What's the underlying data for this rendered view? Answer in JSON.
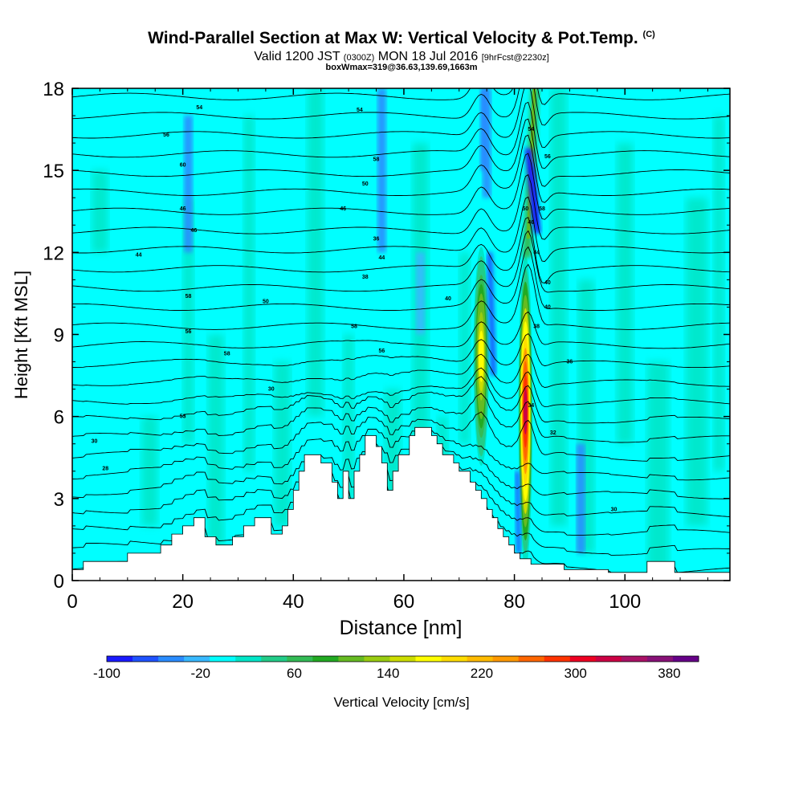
{
  "header": {
    "title": "Wind-Parallel Section at Max W: Vertical Velocity & Pot.Temp.",
    "copyright": "(C)",
    "valid_prefix": "Valid 1200 JST",
    "valid_utc": "(0300Z)",
    "valid_date": "MON 18 Jul 2016",
    "forecast": "[9hrFcst@2230z]",
    "boxwmax": "boxWmax=319@36.63,139.69,1663m"
  },
  "chart_data": {
    "type": "heatmap",
    "xlabel": "Distance [nm]",
    "ylabel": "Height [Kft MSL]",
    "xlim": [
      0,
      119
    ],
    "ylim": [
      0,
      18
    ],
    "x_ticks": [
      0,
      20,
      40,
      60,
      80,
      100
    ],
    "y_ticks": [
      0,
      3,
      6,
      9,
      12,
      15,
      18
    ],
    "colorbar": {
      "label": "Vertical Velocity [cm/s]",
      "tick_labels": [
        -100,
        -20,
        60,
        140,
        220,
        300,
        380
      ],
      "min": -100,
      "max": 400,
      "colors": [
        "#1a1aff",
        "#1f52ff",
        "#2a8cff",
        "#38b9ff",
        "#00ffff",
        "#00e6c8",
        "#22cc88",
        "#33bb55",
        "#22aa22",
        "#66bb22",
        "#99cc11",
        "#ccdd00",
        "#ffff00",
        "#ffdd00",
        "#ffbb00",
        "#ff9900",
        "#ff6600",
        "#ff3300",
        "#ee0022",
        "#cc0044",
        "#aa1166",
        "#881177",
        "#660088"
      ]
    },
    "updraft_cores": [
      {
        "x_nm": 74,
        "w_max": 180
      },
      {
        "x_nm": 82,
        "w_max": 319
      }
    ],
    "downdraft_cores": [
      {
        "x_nm": 76,
        "w_min": -60
      },
      {
        "x_nm": 84,
        "w_min": -100
      }
    ],
    "terrain": [
      [
        0,
        0.4
      ],
      [
        2,
        0.4
      ],
      [
        2,
        0.7
      ],
      [
        10,
        0.7
      ],
      [
        10,
        1.0
      ],
      [
        16,
        1.0
      ],
      [
        16,
        1.3
      ],
      [
        18,
        1.3
      ],
      [
        18,
        1.7
      ],
      [
        20,
        1.7
      ],
      [
        20,
        2.0
      ],
      [
        22,
        2.0
      ],
      [
        22,
        2.3
      ],
      [
        24,
        2.3
      ],
      [
        24,
        1.6
      ],
      [
        26,
        1.6
      ],
      [
        26,
        1.3
      ],
      [
        29,
        1.3
      ],
      [
        29,
        1.6
      ],
      [
        31,
        1.6
      ],
      [
        31,
        2.0
      ],
      [
        33,
        2.0
      ],
      [
        33,
        2.3
      ],
      [
        36,
        2.3
      ],
      [
        36,
        1.7
      ],
      [
        38,
        1.7
      ],
      [
        38,
        2.0
      ],
      [
        39,
        2.0
      ],
      [
        39,
        2.6
      ],
      [
        40,
        2.6
      ],
      [
        40,
        3.3
      ],
      [
        41,
        3.3
      ],
      [
        41,
        4.0
      ],
      [
        42,
        4.0
      ],
      [
        42,
        4.6
      ],
      [
        45,
        4.6
      ],
      [
        45,
        4.3
      ],
      [
        47,
        4.3
      ],
      [
        47,
        3.6
      ],
      [
        48,
        3.6
      ],
      [
        48,
        3.0
      ],
      [
        49,
        3.0
      ],
      [
        49,
        4.0
      ],
      [
        50,
        4.0
      ],
      [
        50,
        3.0
      ],
      [
        51,
        3.0
      ],
      [
        51,
        4.0
      ],
      [
        52,
        4.0
      ],
      [
        52,
        4.6
      ],
      [
        53,
        4.6
      ],
      [
        53,
        5.3
      ],
      [
        55,
        5.3
      ],
      [
        55,
        4.9
      ],
      [
        56,
        4.9
      ],
      [
        56,
        4.3
      ],
      [
        57,
        4.3
      ],
      [
        57,
        3.3
      ],
      [
        58,
        3.3
      ],
      [
        58,
        4.0
      ],
      [
        59,
        4.0
      ],
      [
        59,
        4.6
      ],
      [
        61,
        4.6
      ],
      [
        61,
        5.3
      ],
      [
        62,
        5.3
      ],
      [
        62,
        5.6
      ],
      [
        65,
        5.6
      ],
      [
        65,
        5.3
      ],
      [
        66,
        5.3
      ],
      [
        66,
        5.0
      ],
      [
        67,
        5.0
      ],
      [
        67,
        4.6
      ],
      [
        69,
        4.6
      ],
      [
        69,
        4.3
      ],
      [
        70,
        4.3
      ],
      [
        70,
        4.0
      ],
      [
        72,
        4.0
      ],
      [
        72,
        3.6
      ],
      [
        73,
        3.6
      ],
      [
        73,
        3.3
      ],
      [
        74,
        3.3
      ],
      [
        74,
        3.0
      ],
      [
        75,
        3.0
      ],
      [
        75,
        2.6
      ],
      [
        76,
        2.6
      ],
      [
        76,
        2.3
      ],
      [
        77,
        2.3
      ],
      [
        77,
        1.9
      ],
      [
        78,
        1.9
      ],
      [
        78,
        1.6
      ],
      [
        79,
        1.6
      ],
      [
        79,
        1.3
      ],
      [
        80,
        1.3
      ],
      [
        80,
        1.0
      ],
      [
        81,
        1.0
      ],
      [
        81,
        0.8
      ],
      [
        83,
        0.8
      ],
      [
        83,
        0.6
      ],
      [
        89,
        0.6
      ],
      [
        89,
        0.4
      ],
      [
        97,
        0.4
      ],
      [
        97,
        0.3
      ],
      [
        104,
        0.3
      ],
      [
        104,
        0.7
      ],
      [
        109,
        0.7
      ],
      [
        109,
        0.3
      ],
      [
        119,
        0.3
      ]
    ],
    "isentrope_labels": [
      {
        "x": 12,
        "y": 11.9,
        "text": "44"
      },
      {
        "x": 21,
        "y": 10.4,
        "text": "58"
      },
      {
        "x": 20,
        "y": 13.6,
        "text": "46"
      },
      {
        "x": 17,
        "y": 16.3,
        "text": "56"
      },
      {
        "x": 20,
        "y": 15.2,
        "text": "60"
      },
      {
        "x": 22,
        "y": 12.8,
        "text": "46"
      },
      {
        "x": 23,
        "y": 17.3,
        "text": "54"
      },
      {
        "x": 35,
        "y": 10.2,
        "text": "50"
      },
      {
        "x": 28,
        "y": 8.3,
        "text": "58"
      },
      {
        "x": 21,
        "y": 9.1,
        "text": "56"
      },
      {
        "x": 36,
        "y": 7.0,
        "text": "30"
      },
      {
        "x": 20,
        "y": 6.0,
        "text": "53"
      },
      {
        "x": 4,
        "y": 5.1,
        "text": "30"
      },
      {
        "x": 6,
        "y": 4.1,
        "text": "28"
      },
      {
        "x": 52,
        "y": 17.2,
        "text": "54"
      },
      {
        "x": 55,
        "y": 15.4,
        "text": "58"
      },
      {
        "x": 53,
        "y": 14.5,
        "text": "50"
      },
      {
        "x": 49,
        "y": 13.6,
        "text": "46"
      },
      {
        "x": 55,
        "y": 12.5,
        "text": "36"
      },
      {
        "x": 56,
        "y": 11.8,
        "text": "44"
      },
      {
        "x": 53,
        "y": 11.1,
        "text": "38"
      },
      {
        "x": 68,
        "y": 10.3,
        "text": "40"
      },
      {
        "x": 51,
        "y": 9.3,
        "text": "58"
      },
      {
        "x": 56,
        "y": 8.4,
        "text": "56"
      },
      {
        "x": 83,
        "y": 16.5,
        "text": "54"
      },
      {
        "x": 86,
        "y": 15.5,
        "text": "56"
      },
      {
        "x": 85,
        "y": 13.6,
        "text": "58"
      },
      {
        "x": 82,
        "y": 13.6,
        "text": "50"
      },
      {
        "x": 83,
        "y": 13.1,
        "text": "46"
      },
      {
        "x": 84,
        "y": 12.0,
        "text": "44"
      },
      {
        "x": 86,
        "y": 10.9,
        "text": "40"
      },
      {
        "x": 86,
        "y": 10.0,
        "text": "40"
      },
      {
        "x": 84,
        "y": 9.3,
        "text": "38"
      },
      {
        "x": 90,
        "y": 8.0,
        "text": "36"
      },
      {
        "x": 83,
        "y": 6.4,
        "text": "34"
      },
      {
        "x": 87,
        "y": 5.4,
        "text": "32"
      },
      {
        "x": 98,
        "y": 2.6,
        "text": "30"
      }
    ]
  }
}
